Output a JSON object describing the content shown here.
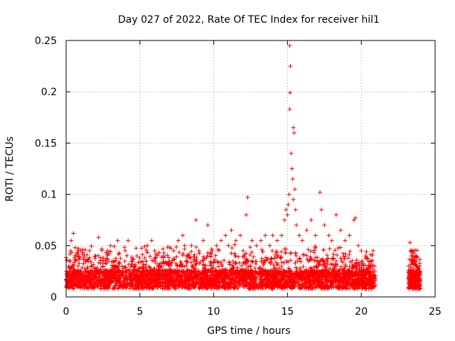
{
  "chart_data": {
    "type": "scatter",
    "title": "Day 027 of 2022, Rate Of TEC Index for receiver hil1",
    "xlabel": "GPS time / hours",
    "ylabel": "ROTI / TECUs",
    "xlim": [
      0,
      25
    ],
    "ylim": [
      0,
      0.25
    ],
    "x_ticks": [
      0,
      5,
      10,
      15,
      20,
      25
    ],
    "y_ticks": [
      0,
      0.05,
      0.1,
      0.15,
      0.2,
      0.25
    ],
    "x_tick_labels": [
      "0",
      "5",
      "10",
      "15",
      "20",
      "25"
    ],
    "y_tick_labels": [
      "0",
      "0.05",
      "0.1",
      "0.15",
      "0.2",
      "0.25"
    ],
    "grid": true,
    "marker": "+",
    "marker_color": "#ff0000",
    "data_gap_hours": [
      21.0,
      23.2
    ],
    "series": [
      {
        "points": [
          [
            0.05,
            0.015
          ],
          [
            0.1,
            0.025
          ],
          [
            0.2,
            0.035
          ],
          [
            0.3,
            0.045
          ],
          [
            0.35,
            0.055
          ],
          [
            0.5,
            0.062
          ],
          [
            0.6,
            0.04
          ],
          [
            0.8,
            0.03
          ],
          [
            1.0,
            0.045
          ],
          [
            1.2,
            0.02
          ],
          [
            1.5,
            0.035
          ],
          [
            1.8,
            0.025
          ],
          [
            2.0,
            0.04
          ],
          [
            2.2,
            0.058
          ],
          [
            2.5,
            0.03
          ],
          [
            2.8,
            0.045
          ],
          [
            3.0,
            0.05
          ],
          [
            3.2,
            0.035
          ],
          [
            3.5,
            0.055
          ],
          [
            3.8,
            0.03
          ],
          [
            4.0,
            0.045
          ],
          [
            4.2,
            0.055
          ],
          [
            4.5,
            0.035
          ],
          [
            4.8,
            0.04
          ],
          [
            5.0,
            0.025
          ],
          [
            5.2,
            0.035
          ],
          [
            5.5,
            0.05
          ],
          [
            5.8,
            0.055
          ],
          [
            6.0,
            0.045
          ],
          [
            6.3,
            0.03
          ],
          [
            6.6,
            0.04
          ],
          [
            7.0,
            0.035
          ],
          [
            7.3,
            0.045
          ],
          [
            7.6,
            0.055
          ],
          [
            7.9,
            0.06
          ],
          [
            8.2,
            0.04
          ],
          [
            8.5,
            0.05
          ],
          [
            8.8,
            0.075
          ],
          [
            9.0,
            0.045
          ],
          [
            9.3,
            0.055
          ],
          [
            9.6,
            0.07
          ],
          [
            9.9,
            0.045
          ],
          [
            10.2,
            0.05
          ],
          [
            10.5,
            0.055
          ],
          [
            10.8,
            0.06
          ],
          [
            11.0,
            0.05
          ],
          [
            11.2,
            0.065
          ],
          [
            11.5,
            0.055
          ],
          [
            11.8,
            0.06
          ],
          [
            12.0,
            0.045
          ],
          [
            12.2,
            0.08
          ],
          [
            12.3,
            0.097
          ],
          [
            12.6,
            0.055
          ],
          [
            12.9,
            0.05
          ],
          [
            13.2,
            0.055
          ],
          [
            13.5,
            0.06
          ],
          [
            13.8,
            0.05
          ],
          [
            14.0,
            0.06
          ],
          [
            14.3,
            0.055
          ],
          [
            14.6,
            0.06
          ],
          [
            14.8,
            0.075
          ],
          [
            14.9,
            0.085
          ],
          [
            15.0,
            0.08
          ],
          [
            15.05,
            0.09
          ],
          [
            15.1,
            0.1
          ],
          [
            15.15,
            0.183
          ],
          [
            15.18,
            0.199
          ],
          [
            15.2,
            0.225
          ],
          [
            15.15,
            0.245
          ],
          [
            15.25,
            0.14
          ],
          [
            15.3,
            0.125
          ],
          [
            15.35,
            0.115
          ],
          [
            15.4,
            0.165
          ],
          [
            15.45,
            0.16
          ],
          [
            15.5,
            0.105
          ],
          [
            15.4,
            0.095
          ],
          [
            15.55,
            0.085
          ],
          [
            15.6,
            0.07
          ],
          [
            15.8,
            0.06
          ],
          [
            16.0,
            0.055
          ],
          [
            16.3,
            0.065
          ],
          [
            16.6,
            0.075
          ],
          [
            16.9,
            0.06
          ],
          [
            17.2,
            0.102
          ],
          [
            17.3,
            0.085
          ],
          [
            17.5,
            0.07
          ],
          [
            17.8,
            0.06
          ],
          [
            18.0,
            0.055
          ],
          [
            18.3,
            0.08
          ],
          [
            18.6,
            0.065
          ],
          [
            18.9,
            0.055
          ],
          [
            19.2,
            0.06
          ],
          [
            19.5,
            0.075
          ],
          [
            19.6,
            0.077
          ],
          [
            19.8,
            0.05
          ],
          [
            20.0,
            0.045
          ],
          [
            20.3,
            0.04
          ],
          [
            20.6,
            0.035
          ],
          [
            20.8,
            0.045
          ],
          [
            20.9,
            0.03
          ],
          [
            23.3,
            0.053
          ],
          [
            23.4,
            0.04
          ],
          [
            23.5,
            0.045
          ],
          [
            23.6,
            0.035
          ],
          [
            23.7,
            0.04
          ],
          [
            23.8,
            0.03
          ],
          [
            23.9,
            0.025
          ]
        ]
      }
    ]
  }
}
